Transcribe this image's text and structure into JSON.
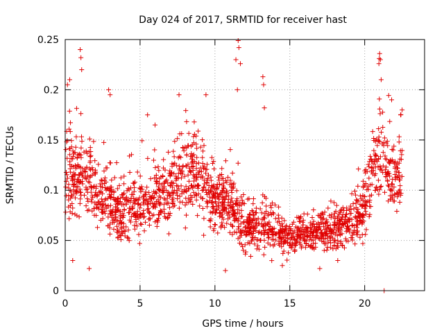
{
  "chart_data": {
    "type": "scatter",
    "title": "Day 024 of 2017, SRMTID for receiver hast",
    "xlabel": "GPS time / hours",
    "ylabel": "SRMTID / TECUs",
    "xlim": [
      0,
      24
    ],
    "ylim": [
      0,
      0.25
    ],
    "x_ticks": [
      0,
      5,
      10,
      15,
      20
    ],
    "x_tick_labels": [
      "0",
      "5",
      "10",
      "15",
      "20"
    ],
    "y_ticks": [
      0,
      0.05,
      0.1,
      0.15,
      0.2,
      0.25
    ],
    "y_tick_labels": [
      "0",
      "0.05",
      "0.1",
      "0.15",
      "0.2",
      "0.25"
    ],
    "grid": true,
    "marker": "+",
    "color": "#e00000",
    "series": [
      {
        "name": "SRMTID",
        "trend": {
          "x": [
            0,
            0.5,
            1,
            1.5,
            2,
            3,
            4,
            5,
            6,
            7,
            8,
            9,
            10,
            11,
            11.5,
            12,
            13,
            14,
            15,
            16,
            17,
            18,
            19,
            20,
            20.5,
            21,
            21.5,
            22,
            22.5
          ],
          "center": [
            0.125,
            0.11,
            0.115,
            0.12,
            0.1,
            0.085,
            0.08,
            0.085,
            0.095,
            0.1,
            0.12,
            0.115,
            0.09,
            0.085,
            0.08,
            0.06,
            0.065,
            0.06,
            0.055,
            0.055,
            0.06,
            0.06,
            0.065,
            0.085,
            0.11,
            0.14,
            0.12,
            0.11,
            0.115
          ],
          "spread": [
            0.045,
            0.04,
            0.045,
            0.04,
            0.035,
            0.03,
            0.03,
            0.03,
            0.032,
            0.035,
            0.04,
            0.035,
            0.03,
            0.03,
            0.03,
            0.022,
            0.022,
            0.02,
            0.018,
            0.018,
            0.02,
            0.02,
            0.022,
            0.03,
            0.035,
            0.045,
            0.04,
            0.035,
            0.035
          ]
        },
        "n_points": 1900,
        "outliers": [
          {
            "x": 1.0,
            "y": 0.24
          },
          {
            "x": 1.05,
            "y": 0.232
          },
          {
            "x": 0.3,
            "y": 0.21
          },
          {
            "x": 0.15,
            "y": 0.205
          },
          {
            "x": 1.1,
            "y": 0.22
          },
          {
            "x": 2.9,
            "y": 0.2
          },
          {
            "x": 11.55,
            "y": 0.249
          },
          {
            "x": 11.6,
            "y": 0.242
          },
          {
            "x": 11.4,
            "y": 0.23
          },
          {
            "x": 11.7,
            "y": 0.226
          },
          {
            "x": 11.5,
            "y": 0.2
          },
          {
            "x": 13.2,
            "y": 0.213
          },
          {
            "x": 13.25,
            "y": 0.205
          },
          {
            "x": 13.3,
            "y": 0.182
          },
          {
            "x": 9.4,
            "y": 0.195
          },
          {
            "x": 7.6,
            "y": 0.195
          },
          {
            "x": 21.0,
            "y": 0.236
          },
          {
            "x": 21.05,
            "y": 0.23
          },
          {
            "x": 20.95,
            "y": 0.226
          },
          {
            "x": 21.1,
            "y": 0.21
          },
          {
            "x": 21.3,
            "y": 0.0
          },
          {
            "x": 10.7,
            "y": 0.02
          },
          {
            "x": 0.5,
            "y": 0.03
          },
          {
            "x": 1.6,
            "y": 0.022
          },
          {
            "x": 14.5,
            "y": 0.025
          },
          {
            "x": 17.0,
            "y": 0.022
          },
          {
            "x": 18.2,
            "y": 0.03
          },
          {
            "x": 22.5,
            "y": 0.18
          },
          {
            "x": 22.4,
            "y": 0.175
          },
          {
            "x": 21.8,
            "y": 0.19
          },
          {
            "x": 5.5,
            "y": 0.175
          },
          {
            "x": 6.0,
            "y": 0.165
          },
          {
            "x": 3.0,
            "y": 0.195
          }
        ]
      }
    ]
  }
}
